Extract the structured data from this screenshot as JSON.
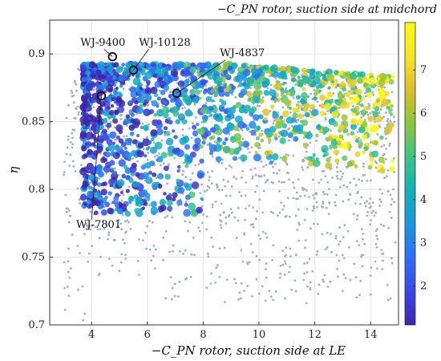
{
  "chart_data": {
    "type": "scatter",
    "title": "",
    "xlabel": "−C_PN rotor, suction side at LE",
    "ylabel": "η",
    "xlim": [
      2.5,
      15
    ],
    "ylim": [
      0.7,
      0.925
    ],
    "x_ticks": [
      "4",
      "6",
      "8",
      "10",
      "12",
      "14"
    ],
    "y_ticks": [
      "0.7",
      "0.75",
      "0.8",
      "0.85",
      "0.9"
    ],
    "x_tick_values": [
      4,
      6,
      8,
      10,
      12,
      14
    ],
    "y_tick_values": [
      0.7,
      0.75,
      0.8,
      0.85,
      0.9
    ],
    "grid": true,
    "colorbar": {
      "title": "−C_PN rotor, suction side at midchord",
      "range": [
        1.1,
        8.1
      ],
      "ticks": [
        "2",
        "3",
        "4",
        "5",
        "6",
        "7"
      ],
      "tick_values": [
        2,
        3,
        4,
        5,
        6,
        7
      ],
      "colormap": [
        "#3d26a8",
        "#3b47e9",
        "#2f6ef5",
        "#1e96dd",
        "#0fb2b8",
        "#3cc38a",
        "#8cc63f",
        "#dcbd2c",
        "#fce328",
        "#f9fb0e"
      ]
    },
    "background_points_color": "#a7adc4",
    "highlighted": [
      {
        "label": "WJ-9400",
        "x": 4.75,
        "y": 0.898
      },
      {
        "label": "WJ-10128",
        "x": 5.5,
        "y": 0.888
      },
      {
        "label": "WJ-4837",
        "x": 7.05,
        "y": 0.871
      },
      {
        "label": "WJ-7801",
        "x": 4.35,
        "y": 0.869
      }
    ]
  }
}
